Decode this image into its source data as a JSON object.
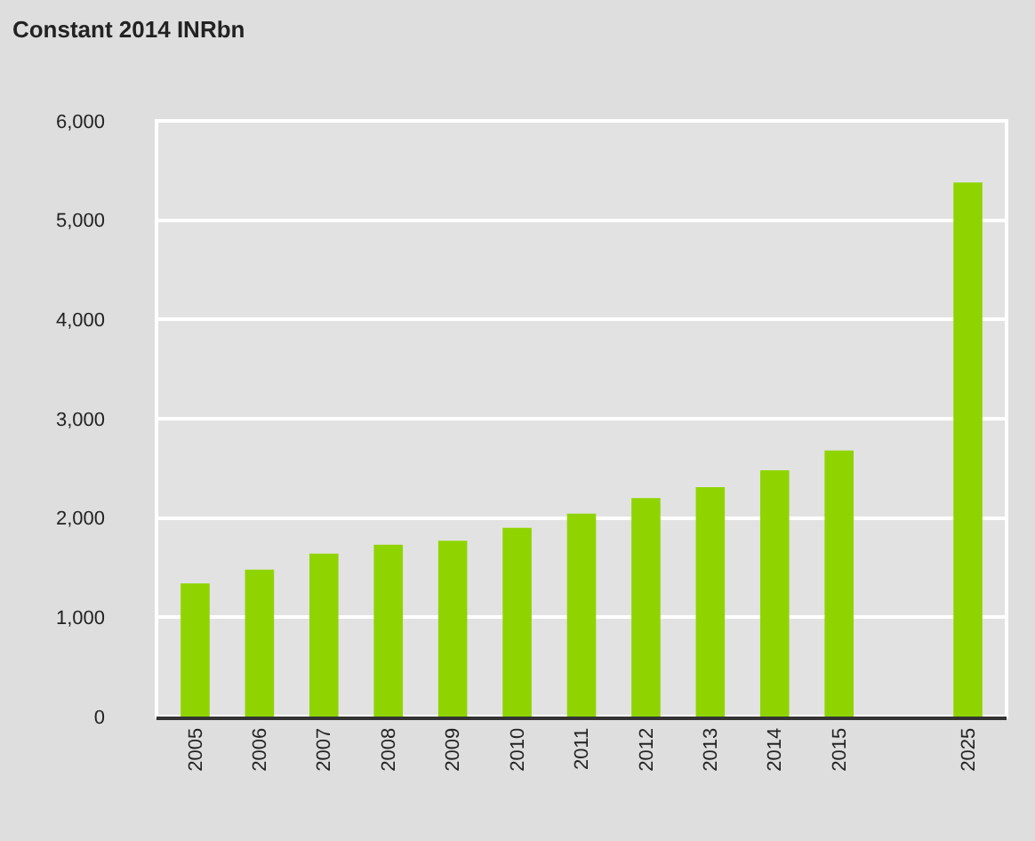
{
  "chart_data": {
    "type": "bar",
    "title": "Constant 2014 INRbn",
    "categories": [
      "2005",
      "2006",
      "2007",
      "2008",
      "2009",
      "2010",
      "2011",
      "2012",
      "2013",
      "2014",
      "2015",
      null,
      "2025"
    ],
    "values": [
      1340,
      1480,
      1640,
      1730,
      1770,
      1900,
      2045,
      2200,
      2310,
      2480,
      2680,
      null,
      5380
    ],
    "color": "#8fd400",
    "ylim": [
      0,
      6000
    ],
    "yticks": [
      {
        "value": 0,
        "label": "0"
      },
      {
        "value": 1000,
        "label": "1,000"
      },
      {
        "value": 2000,
        "label": "2,000"
      },
      {
        "value": 3000,
        "label": "3,000"
      },
      {
        "value": 4000,
        "label": "4,000"
      },
      {
        "value": 5000,
        "label": "5,000"
      },
      {
        "value": 6000,
        "label": "6,000"
      }
    ],
    "grid": "y",
    "legend": false
  }
}
